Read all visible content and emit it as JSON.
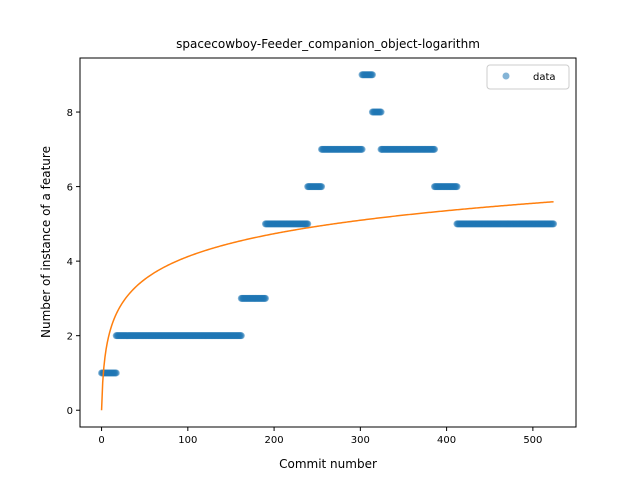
{
  "chart_data": {
    "type": "scatter",
    "title": "spacecowboy-Feeder_companion_object-logarithm",
    "xlabel": "Commit number",
    "ylabel": "Number of instance of a feature",
    "xlim": [
      -25,
      550
    ],
    "ylim": [
      -0.45,
      9.45
    ],
    "xticks": [
      0,
      100,
      200,
      300,
      400,
      500
    ],
    "yticks": [
      0,
      2,
      4,
      6,
      8
    ],
    "legend": {
      "entries": [
        "data"
      ],
      "placement": "upper right"
    },
    "colors": {
      "data": "#1f77b4",
      "fit": "#ff7f0e"
    },
    "series": [
      {
        "name": "data",
        "kind": "scatter",
        "segments": [
          {
            "x_start": 0,
            "x_end": 17,
            "y": 1
          },
          {
            "x_start": 17,
            "x_end": 162,
            "y": 2
          },
          {
            "x_start": 162,
            "x_end": 190,
            "y": 3
          },
          {
            "x_start": 190,
            "x_end": 239,
            "y": 5
          },
          {
            "x_start": 239,
            "x_end": 255,
            "y": 6
          },
          {
            "x_start": 255,
            "x_end": 302,
            "y": 7
          },
          {
            "x_start": 302,
            "x_end": 314,
            "y": 9
          },
          {
            "x_start": 314,
            "x_end": 324,
            "y": 8
          },
          {
            "x_start": 324,
            "x_end": 386,
            "y": 7
          },
          {
            "x_start": 386,
            "x_end": 412,
            "y": 6
          },
          {
            "x_start": 412,
            "x_end": 524,
            "y": 5
          }
        ]
      },
      {
        "kind": "line",
        "model": "logarithm",
        "formula": "y = a * ln(1 + x)",
        "a": 0.893,
        "x_range": [
          0,
          524
        ]
      }
    ]
  }
}
